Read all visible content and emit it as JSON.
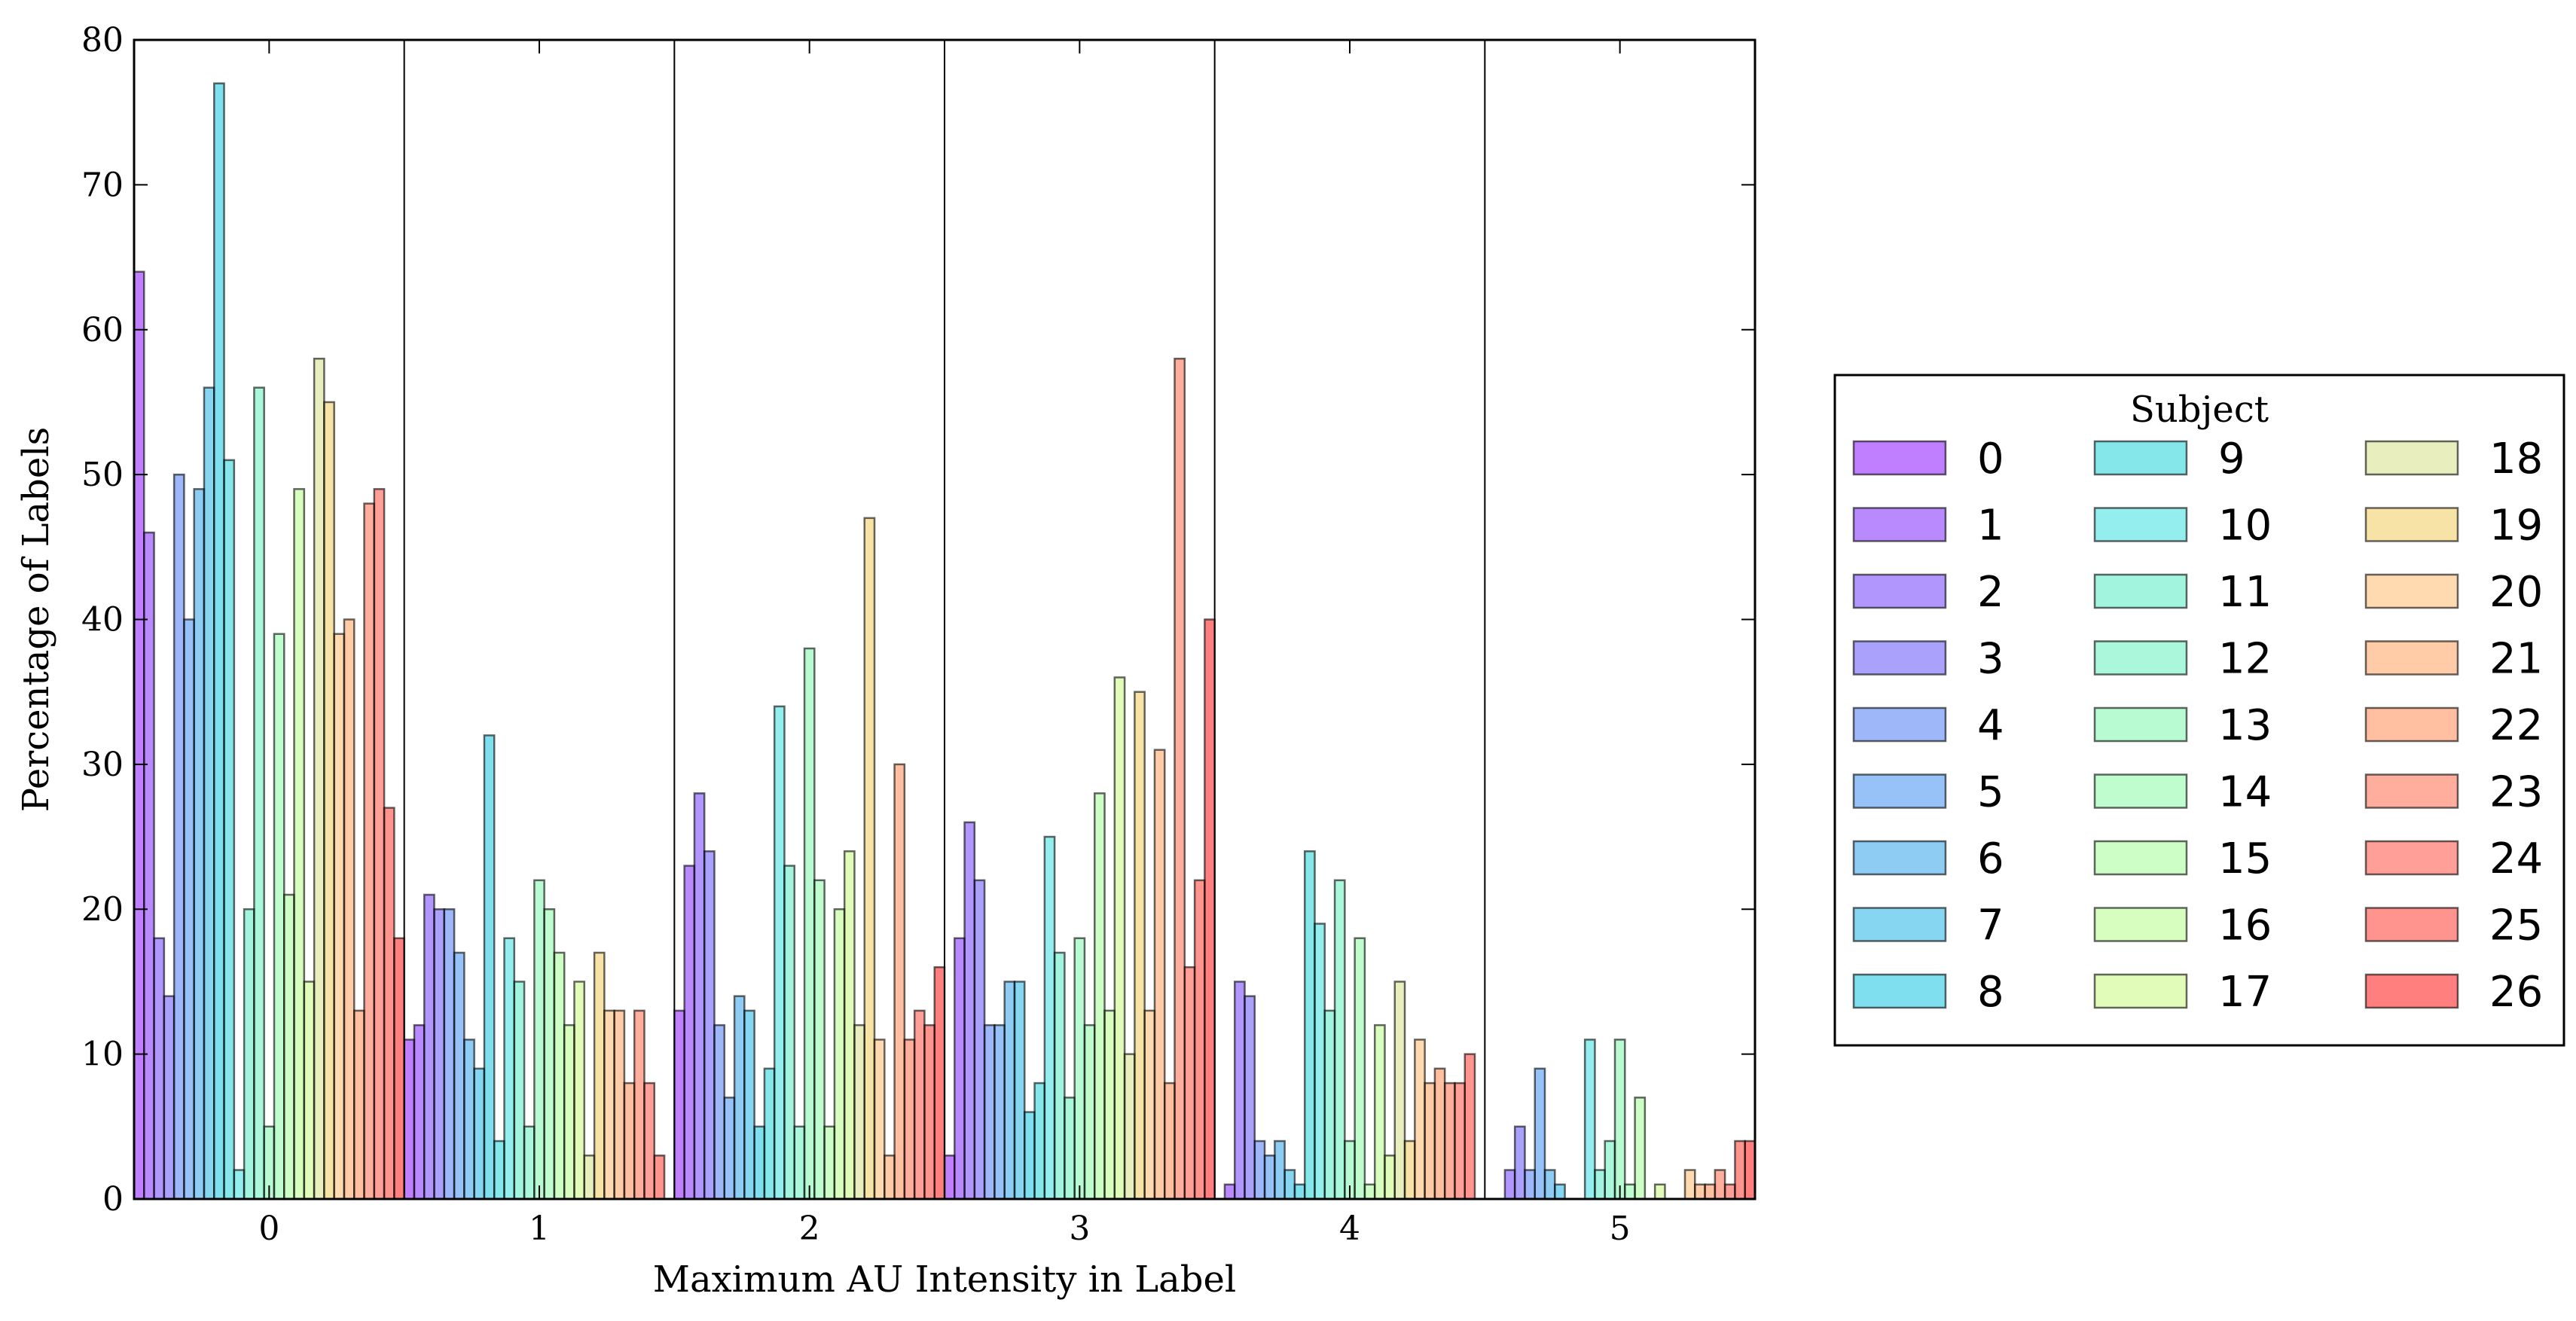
{
  "chart_data": {
    "type": "bar",
    "xlabel": "Maximum AU Intensity in Label",
    "ylabel": "Percentage of Labels",
    "categories": [
      "0",
      "1",
      "2",
      "3",
      "4",
      "5"
    ],
    "ylim": [
      0,
      80
    ],
    "yticks": [
      "0",
      "10",
      "20",
      "30",
      "40",
      "50",
      "60",
      "70",
      "80"
    ],
    "grid": false,
    "legend": {
      "title": "Subject",
      "placement": "right",
      "columns": 3
    },
    "series": [
      {
        "name": "0",
        "color": "#8000ff",
        "values": [
          64,
          11,
          13,
          3,
          0,
          0
        ]
      },
      {
        "name": "1",
        "color": "#7216fe",
        "values": [
          46,
          12,
          23,
          18,
          1,
          0
        ]
      },
      {
        "name": "2",
        "color": "#642dfc",
        "values": [
          18,
          21,
          28,
          26,
          15,
          2
        ]
      },
      {
        "name": "3",
        "color": "#5643fa",
        "values": [
          14,
          20,
          24,
          22,
          14,
          5
        ]
      },
      {
        "name": "4",
        "color": "#3b6ff4",
        "values": [
          50,
          20,
          12,
          12,
          4,
          2
        ]
      },
      {
        "name": "5",
        "color": "#2d85f0",
        "values": [
          40,
          17,
          7,
          12,
          3,
          9
        ]
      },
      {
        "name": "6",
        "color": "#1f99ea",
        "values": [
          49,
          11,
          14,
          15,
          4,
          2
        ]
      },
      {
        "name": "7",
        "color": "#10ade4",
        "values": [
          56,
          9,
          13,
          15,
          2,
          1
        ]
      },
      {
        "name": "8",
        "color": "#02bfdd",
        "values": [
          77,
          32,
          5,
          6,
          1,
          0
        ]
      },
      {
        "name": "9",
        "color": "#0ccfd5",
        "values": [
          51,
          4,
          9,
          8,
          24,
          0
        ]
      },
      {
        "name": "10",
        "color": "#2adddd",
        "values": [
          2,
          18,
          34,
          25,
          19,
          11
        ]
      },
      {
        "name": "11",
        "color": "#47e9c0",
        "values": [
          20,
          15,
          23,
          17,
          13,
          2
        ]
      },
      {
        "name": "12",
        "color": "#55efb8",
        "values": [
          56,
          5,
          5,
          7,
          22,
          4
        ]
      },
      {
        "name": "13",
        "color": "#72f8a6",
        "values": [
          5,
          22,
          38,
          18,
          4,
          11
        ]
      },
      {
        "name": "14",
        "color": "#80fb9e",
        "values": [
          39,
          20,
          22,
          12,
          18,
          1
        ]
      },
      {
        "name": "15",
        "color": "#9cfe8c",
        "values": [
          21,
          17,
          5,
          28,
          1,
          7
        ]
      },
      {
        "name": "16",
        "color": "#b0fe7f",
        "values": [
          49,
          12,
          20,
          13,
          12,
          0
        ]
      },
      {
        "name": "17",
        "color": "#c3f974",
        "values": [
          15,
          15,
          24,
          36,
          3,
          1
        ]
      },
      {
        "name": "18",
        "color": "#d4dd80",
        "values": [
          58,
          3,
          12,
          10,
          15,
          0
        ]
      },
      {
        "name": "19",
        "color": "#f0c84e",
        "values": [
          55,
          17,
          47,
          35,
          4,
          0
        ]
      },
      {
        "name": "20",
        "color": "#ffb360",
        "values": [
          39,
          13,
          11,
          13,
          11,
          2
        ]
      },
      {
        "name": "21",
        "color": "#ff9a50",
        "values": [
          40,
          13,
          3,
          31,
          8,
          1
        ]
      },
      {
        "name": "22",
        "color": "#ff7f42",
        "values": [
          13,
          8,
          30,
          8,
          9,
          1
        ]
      },
      {
        "name": "23",
        "color": "#ff5c3a",
        "values": [
          48,
          13,
          11,
          58,
          8,
          2
        ]
      },
      {
        "name": "24",
        "color": "#ff4030",
        "values": [
          49,
          8,
          13,
          16,
          8,
          1
        ]
      },
      {
        "name": "25",
        "color": "#ff2a20",
        "values": [
          27,
          3,
          12,
          22,
          10,
          4
        ]
      },
      {
        "name": "26",
        "color": "#ff0000",
        "values": [
          18,
          0,
          16,
          40,
          0,
          4
        ]
      }
    ]
  }
}
